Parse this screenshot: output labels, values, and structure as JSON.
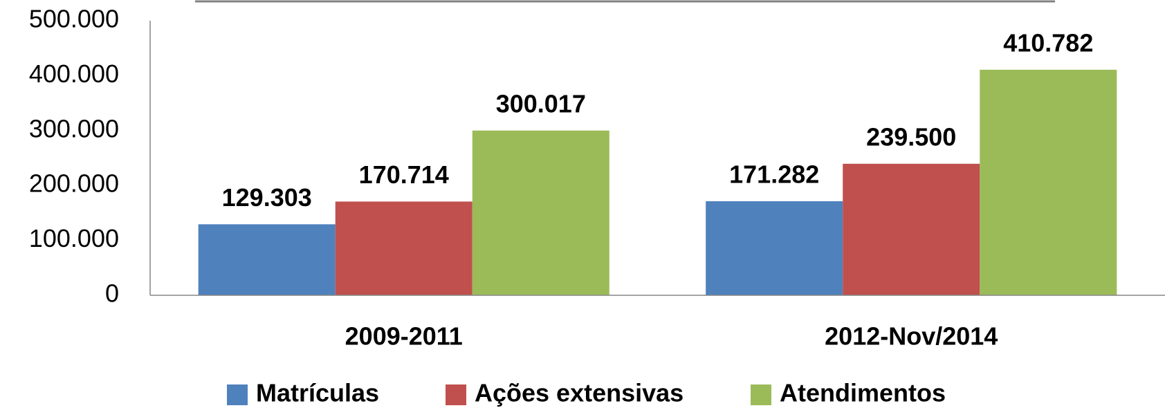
{
  "chart_data": {
    "type": "bar",
    "categories": [
      "2009-2011",
      "2012-Nov/2014"
    ],
    "series": [
      {
        "name": "Matrículas",
        "color": "#4f81bd",
        "values": [
          129303,
          171282
        ],
        "value_labels": [
          "129.303",
          "171.282"
        ]
      },
      {
        "name": "Ações extensivas",
        "color": "#c0504d",
        "values": [
          170714,
          239500
        ],
        "value_labels": [
          "170.714",
          "239.500"
        ]
      },
      {
        "name": "Atendimentos",
        "color": "#9bbb59",
        "values": [
          300017,
          410782
        ],
        "value_labels": [
          "300.017",
          "410.782"
        ]
      }
    ],
    "ylim": [
      0,
      500000
    ],
    "yticks": [
      0,
      {
        "value": 100000,
        "label": "100.000"
      },
      {
        "value": 200000,
        "label": "200.000"
      },
      {
        "value": 300000,
        "label": "300.000"
      },
      {
        "value": 400000,
        "label": "400.000"
      },
      {
        "value": 500000,
        "label": "500.000"
      }
    ],
    "grid": false,
    "legend": "bottom"
  }
}
